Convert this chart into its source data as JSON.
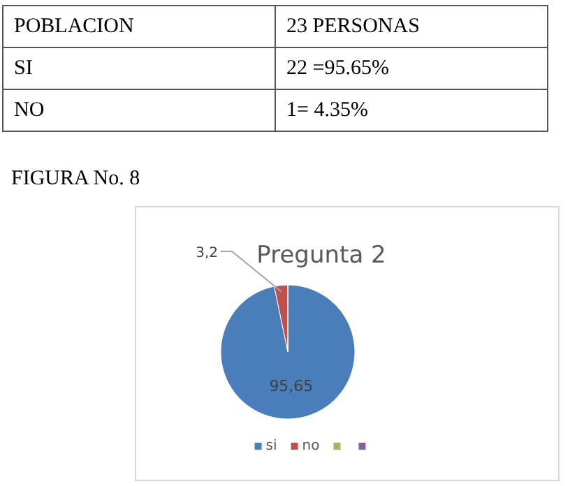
{
  "chart_data": {
    "type": "pie",
    "title": "Pregunta 2",
    "categories": [
      "si",
      "no",
      null,
      null
    ],
    "values": [
      95.65,
      3.2,
      0,
      0
    ],
    "colors": [
      "#4a7ebb",
      "#c0504d",
      "#9bbb59",
      "#8064a2"
    ],
    "value_labels": [
      "95,65",
      "3,2",
      null,
      null
    ],
    "legend": "bottom",
    "annotations": [
      "POBLACION",
      "23 PERSONAS",
      "SI",
      "22 =95.65%",
      "NO",
      "1= 4.35%",
      "FIGURA No. 8"
    ]
  }
}
